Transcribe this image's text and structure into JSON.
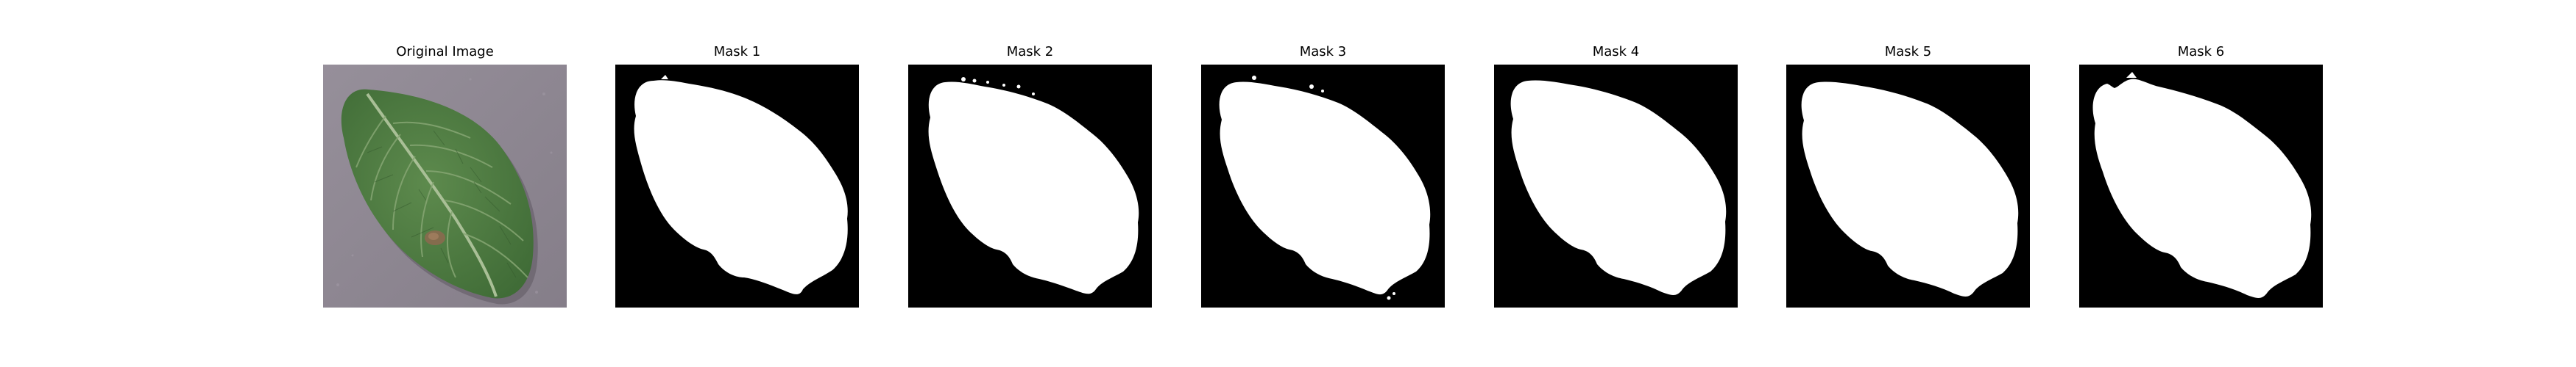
{
  "panels": [
    {
      "title": "Original Image",
      "kind": "photo"
    },
    {
      "title": "Mask 1",
      "kind": "mask"
    },
    {
      "title": "Mask 2",
      "kind": "mask"
    },
    {
      "title": "Mask 3",
      "kind": "mask"
    },
    {
      "title": "Mask 4",
      "kind": "mask"
    },
    {
      "title": "Mask 5",
      "kind": "mask"
    },
    {
      "title": "Mask 6",
      "kind": "mask"
    }
  ],
  "colors": {
    "background": "#ffffff",
    "mask_background": "#000000",
    "mask_foreground": "#ffffff",
    "photo_surface": "#8e8792",
    "leaf_green": "#4f7d43",
    "leaf_vein": "#9bb38b",
    "lesion": "#8a6a4f"
  }
}
